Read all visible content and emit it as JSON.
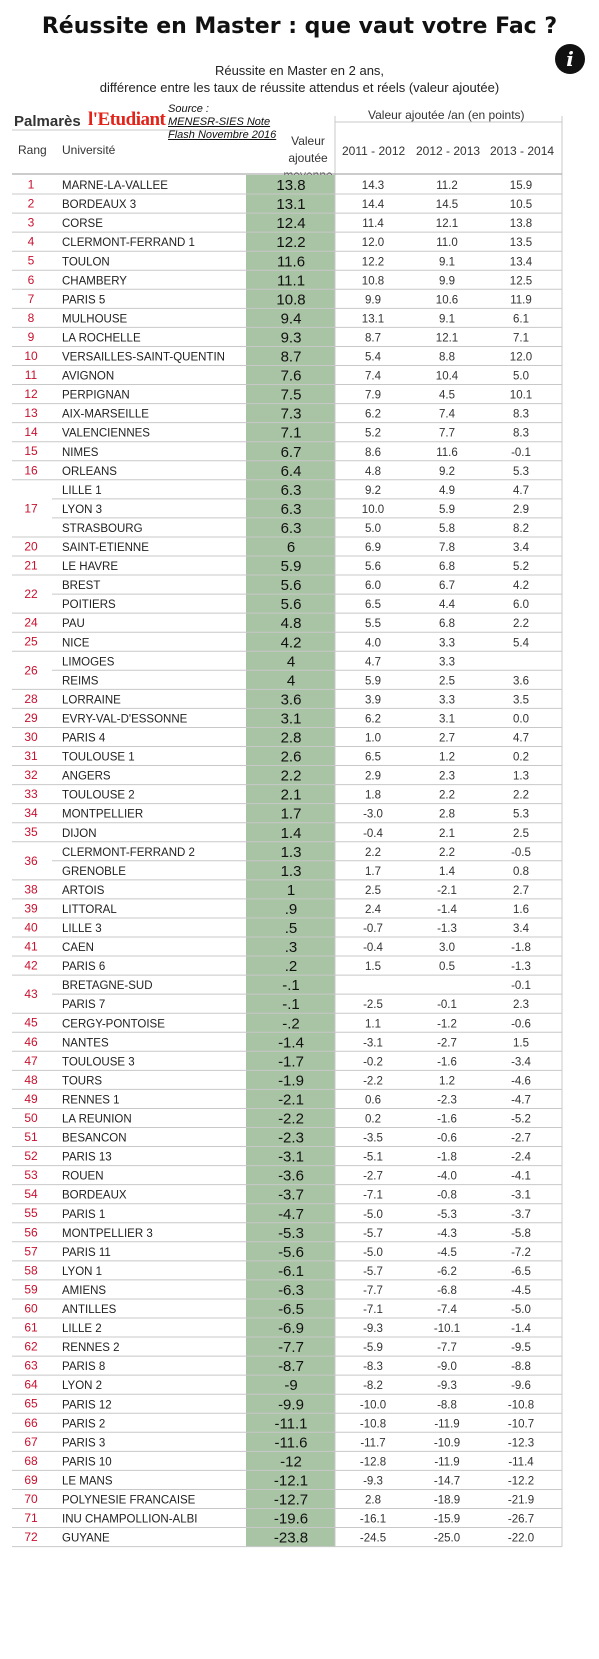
{
  "title": "Réussite en Master : que vaut votre Fac ?",
  "subtitle_line1": "Réussite en Master en 2 ans,",
  "subtitle_line2": "différence entre les taux de réussite attendus et réels (valeur ajoutée)",
  "palmares": "Palmarès",
  "logo": "l'Etudiant",
  "source_label": "Source :",
  "source_line1": "MENESR-SIES Note",
  "source_line2": "Flash Novembre 2016",
  "col_rank": "Rang",
  "col_univ": "Université",
  "col_avg_1": "Valeur",
  "col_avg_2": "ajoutée",
  "col_avg_3": "moyenne",
  "col_group": "Valeur ajoutée /an (en points)",
  "years": [
    "2011 - 2012",
    "2012 - 2013",
    "2013 - 2014"
  ],
  "colors": {
    "highlight": "#a9c3a5",
    "border": "#c8c8c8",
    "rank": "#c8102e"
  },
  "chart_data": {
    "type": "table",
    "rows": [
      {
        "rank": "1",
        "univ": "MARNE-LA-VALLEE",
        "avg": "13.8",
        "y1": "14.3",
        "y2": "11.2",
        "y3": "15.9"
      },
      {
        "rank": "2",
        "univ": "BORDEAUX 3",
        "avg": "13.1",
        "y1": "14.4",
        "y2": "14.5",
        "y3": "10.5"
      },
      {
        "rank": "3",
        "univ": "CORSE",
        "avg": "12.4",
        "y1": "11.4",
        "y2": "12.1",
        "y3": "13.8"
      },
      {
        "rank": "4",
        "univ": "CLERMONT-FERRAND 1",
        "avg": "12.2",
        "y1": "12.0",
        "y2": "11.0",
        "y3": "13.5"
      },
      {
        "rank": "5",
        "univ": "TOULON",
        "avg": "11.6",
        "y1": "12.2",
        "y2": "9.1",
        "y3": "13.4"
      },
      {
        "rank": "6",
        "univ": "CHAMBERY",
        "avg": "11.1",
        "y1": "10.8",
        "y2": "9.9",
        "y3": "12.5"
      },
      {
        "rank": "7",
        "univ": "PARIS 5",
        "avg": "10.8",
        "y1": "9.9",
        "y2": "10.6",
        "y3": "11.9"
      },
      {
        "rank": "8",
        "univ": "MULHOUSE",
        "avg": "9.4",
        "y1": "13.1",
        "y2": "9.1",
        "y3": "6.1"
      },
      {
        "rank": "9",
        "univ": "LA ROCHELLE",
        "avg": "9.3",
        "y1": "8.7",
        "y2": "12.1",
        "y3": "7.1"
      },
      {
        "rank": "10",
        "univ": "VERSAILLES-SAINT-QUENTIN",
        "avg": "8.7",
        "y1": "5.4",
        "y2": "8.8",
        "y3": "12.0"
      },
      {
        "rank": "11",
        "univ": "AVIGNON",
        "avg": "7.6",
        "y1": "7.4",
        "y2": "10.4",
        "y3": "5.0"
      },
      {
        "rank": "12",
        "univ": "PERPIGNAN",
        "avg": "7.5",
        "y1": "7.9",
        "y2": "4.5",
        "y3": "10.1"
      },
      {
        "rank": "13",
        "univ": "AIX-MARSEILLE",
        "avg": "7.3",
        "y1": "6.2",
        "y2": "7.4",
        "y3": "8.3"
      },
      {
        "rank": "14",
        "univ": "VALENCIENNES",
        "avg": "7.1",
        "y1": "5.2",
        "y2": "7.7",
        "y3": "8.3"
      },
      {
        "rank": "15",
        "univ": "NIMES",
        "avg": "6.7",
        "y1": "8.6",
        "y2": "11.6",
        "y3": "-0.1"
      },
      {
        "rank": "16",
        "univ": "ORLEANS",
        "avg": "6.4",
        "y1": "4.8",
        "y2": "9.2",
        "y3": "5.3"
      },
      {
        "rank": "17",
        "univ": "LILLE 1",
        "avg": "6.3",
        "y1": "9.2",
        "y2": "4.9",
        "y3": "4.7"
      },
      {
        "rank": "",
        "univ": "LYON 3",
        "avg": "6.3",
        "y1": "10.0",
        "y2": "5.9",
        "y3": "2.9"
      },
      {
        "rank": "",
        "univ": "STRASBOURG",
        "avg": "6.3",
        "y1": "5.0",
        "y2": "5.8",
        "y3": "8.2"
      },
      {
        "rank": "20",
        "univ": "SAINT-ETIENNE",
        "avg": "6",
        "y1": "6.9",
        "y2": "7.8",
        "y3": "3.4"
      },
      {
        "rank": "21",
        "univ": "LE HAVRE",
        "avg": "5.9",
        "y1": "5.6",
        "y2": "6.8",
        "y3": "5.2"
      },
      {
        "rank": "22",
        "univ": "BREST",
        "avg": "5.6",
        "y1": "6.0",
        "y2": "6.7",
        "y3": "4.2"
      },
      {
        "rank": "",
        "univ": "POITIERS",
        "avg": "5.6",
        "y1": "6.5",
        "y2": "4.4",
        "y3": "6.0"
      },
      {
        "rank": "24",
        "univ": "PAU",
        "avg": "4.8",
        "y1": "5.5",
        "y2": "6.8",
        "y3": "2.2"
      },
      {
        "rank": "25",
        "univ": "NICE",
        "avg": "4.2",
        "y1": "4.0",
        "y2": "3.3",
        "y3": "5.4"
      },
      {
        "rank": "26",
        "univ": "LIMOGES",
        "avg": "4",
        "y1": "4.7",
        "y2": "3.3",
        "y3": ""
      },
      {
        "rank": "",
        "univ": "REIMS",
        "avg": "4",
        "y1": "5.9",
        "y2": "2.5",
        "y3": "3.6"
      },
      {
        "rank": "28",
        "univ": "LORRAINE",
        "avg": "3.6",
        "y1": "3.9",
        "y2": "3.3",
        "y3": "3.5"
      },
      {
        "rank": "29",
        "univ": "EVRY-VAL-D'ESSONNE",
        "avg": "3.1",
        "y1": "6.2",
        "y2": "3.1",
        "y3": "0.0"
      },
      {
        "rank": "30",
        "univ": "PARIS 4",
        "avg": "2.8",
        "y1": "1.0",
        "y2": "2.7",
        "y3": "4.7"
      },
      {
        "rank": "31",
        "univ": "TOULOUSE 1",
        "avg": "2.6",
        "y1": "6.5",
        "y2": "1.2",
        "y3": "0.2"
      },
      {
        "rank": "32",
        "univ": "ANGERS",
        "avg": "2.2",
        "y1": "2.9",
        "y2": "2.3",
        "y3": "1.3"
      },
      {
        "rank": "33",
        "univ": "TOULOUSE 2",
        "avg": "2.1",
        "y1": "1.8",
        "y2": "2.2",
        "y3": "2.2"
      },
      {
        "rank": "34",
        "univ": "MONTPELLIER",
        "avg": "1.7",
        "y1": "-3.0",
        "y2": "2.8",
        "y3": "5.3"
      },
      {
        "rank": "35",
        "univ": "DIJON",
        "avg": "1.4",
        "y1": "-0.4",
        "y2": "2.1",
        "y3": "2.5"
      },
      {
        "rank": "36",
        "univ": "CLERMONT-FERRAND 2",
        "avg": "1.3",
        "y1": "2.2",
        "y2": "2.2",
        "y3": "-0.5"
      },
      {
        "rank": "",
        "univ": "GRENOBLE",
        "avg": "1.3",
        "y1": "1.7",
        "y2": "1.4",
        "y3": "0.8"
      },
      {
        "rank": "38",
        "univ": "ARTOIS",
        "avg": "1",
        "y1": "2.5",
        "y2": "-2.1",
        "y3": "2.7"
      },
      {
        "rank": "39",
        "univ": "LITTORAL",
        "avg": ".9",
        "y1": "2.4",
        "y2": "-1.4",
        "y3": "1.6"
      },
      {
        "rank": "40",
        "univ": "LILLE 3",
        "avg": ".5",
        "y1": "-0.7",
        "y2": "-1.3",
        "y3": "3.4"
      },
      {
        "rank": "41",
        "univ": "CAEN",
        "avg": ".3",
        "y1": "-0.4",
        "y2": "3.0",
        "y3": "-1.8"
      },
      {
        "rank": "42",
        "univ": "PARIS 6",
        "avg": ".2",
        "y1": "1.5",
        "y2": "0.5",
        "y3": "-1.3"
      },
      {
        "rank": "43",
        "univ": "BRETAGNE-SUD",
        "avg": "-.1",
        "y1": "",
        "y2": "",
        "y3": "-0.1"
      },
      {
        "rank": "",
        "univ": "PARIS 7",
        "avg": "-.1",
        "y1": "-2.5",
        "y2": "-0.1",
        "y3": "2.3"
      },
      {
        "rank": "45",
        "univ": "CERGY-PONTOISE",
        "avg": "-.2",
        "y1": "1.1",
        "y2": "-1.2",
        "y3": "-0.6"
      },
      {
        "rank": "46",
        "univ": "NANTES",
        "avg": "-1.4",
        "y1": "-3.1",
        "y2": "-2.7",
        "y3": "1.5"
      },
      {
        "rank": "47",
        "univ": "TOULOUSE 3",
        "avg": "-1.7",
        "y1": "-0.2",
        "y2": "-1.6",
        "y3": "-3.4"
      },
      {
        "rank": "48",
        "univ": "TOURS",
        "avg": "-1.9",
        "y1": "-2.2",
        "y2": "1.2",
        "y3": "-4.6"
      },
      {
        "rank": "49",
        "univ": "RENNES 1",
        "avg": "-2.1",
        "y1": "0.6",
        "y2": "-2.3",
        "y3": "-4.7"
      },
      {
        "rank": "50",
        "univ": "LA REUNION",
        "avg": "-2.2",
        "y1": "0.2",
        "y2": "-1.6",
        "y3": "-5.2"
      },
      {
        "rank": "51",
        "univ": "BESANCON",
        "avg": "-2.3",
        "y1": "-3.5",
        "y2": "-0.6",
        "y3": "-2.7"
      },
      {
        "rank": "52",
        "univ": "PARIS 13",
        "avg": "-3.1",
        "y1": "-5.1",
        "y2": "-1.8",
        "y3": "-2.4"
      },
      {
        "rank": "53",
        "univ": "ROUEN",
        "avg": "-3.6",
        "y1": "-2.7",
        "y2": "-4.0",
        "y3": "-4.1"
      },
      {
        "rank": "54",
        "univ": "BORDEAUX",
        "avg": "-3.7",
        "y1": "-7.1",
        "y2": "-0.8",
        "y3": "-3.1"
      },
      {
        "rank": "55",
        "univ": "PARIS 1",
        "avg": "-4.7",
        "y1": "-5.0",
        "y2": "-5.3",
        "y3": "-3.7"
      },
      {
        "rank": "56",
        "univ": "MONTPELLIER 3",
        "avg": "-5.3",
        "y1": "-5.7",
        "y2": "-4.3",
        "y3": "-5.8"
      },
      {
        "rank": "57",
        "univ": "PARIS 11",
        "avg": "-5.6",
        "y1": "-5.0",
        "y2": "-4.5",
        "y3": "-7.2"
      },
      {
        "rank": "58",
        "univ": "LYON 1",
        "avg": "-6.1",
        "y1": "-5.7",
        "y2": "-6.2",
        "y3": "-6.5"
      },
      {
        "rank": "59",
        "univ": "AMIENS",
        "avg": "-6.3",
        "y1": "-7.7",
        "y2": "-6.8",
        "y3": "-4.5"
      },
      {
        "rank": "60",
        "univ": "ANTILLES",
        "avg": "-6.5",
        "y1": "-7.1",
        "y2": "-7.4",
        "y3": "-5.0"
      },
      {
        "rank": "61",
        "univ": "LILLE 2",
        "avg": "-6.9",
        "y1": "-9.3",
        "y2": "-10.1",
        "y3": "-1.4"
      },
      {
        "rank": "62",
        "univ": "RENNES 2",
        "avg": "-7.7",
        "y1": "-5.9",
        "y2": "-7.7",
        "y3": "-9.5"
      },
      {
        "rank": "63",
        "univ": "PARIS 8",
        "avg": "-8.7",
        "y1": "-8.3",
        "y2": "-9.0",
        "y3": "-8.8"
      },
      {
        "rank": "64",
        "univ": "LYON 2",
        "avg": "-9",
        "y1": "-8.2",
        "y2": "-9.3",
        "y3": "-9.6"
      },
      {
        "rank": "65",
        "univ": "PARIS 12",
        "avg": "-9.9",
        "y1": "-10.0",
        "y2": "-8.8",
        "y3": "-10.8"
      },
      {
        "rank": "66",
        "univ": "PARIS 2",
        "avg": "-11.1",
        "y1": "-10.8",
        "y2": "-11.9",
        "y3": "-10.7"
      },
      {
        "rank": "67",
        "univ": "PARIS 3",
        "avg": "-11.6",
        "y1": "-11.7",
        "y2": "-10.9",
        "y3": "-12.3"
      },
      {
        "rank": "68",
        "univ": "PARIS 10",
        "avg": "-12",
        "y1": "-12.8",
        "y2": "-11.9",
        "y3": "-11.4"
      },
      {
        "rank": "69",
        "univ": "LE MANS",
        "avg": "-12.1",
        "y1": "-9.3",
        "y2": "-14.7",
        "y3": "-12.2"
      },
      {
        "rank": "70",
        "univ": "POLYNESIE FRANCAISE",
        "avg": "-12.7",
        "y1": "2.8",
        "y2": "-18.9",
        "y3": "-21.9"
      },
      {
        "rank": "71",
        "univ": "INU CHAMPOLLION-ALBI",
        "avg": "-19.6",
        "y1": "-16.1",
        "y2": "-15.9",
        "y3": "-26.7"
      },
      {
        "rank": "72",
        "univ": "GUYANE",
        "avg": "-23.8",
        "y1": "-24.5",
        "y2": "-25.0",
        "y3": "-22.0"
      }
    ]
  }
}
